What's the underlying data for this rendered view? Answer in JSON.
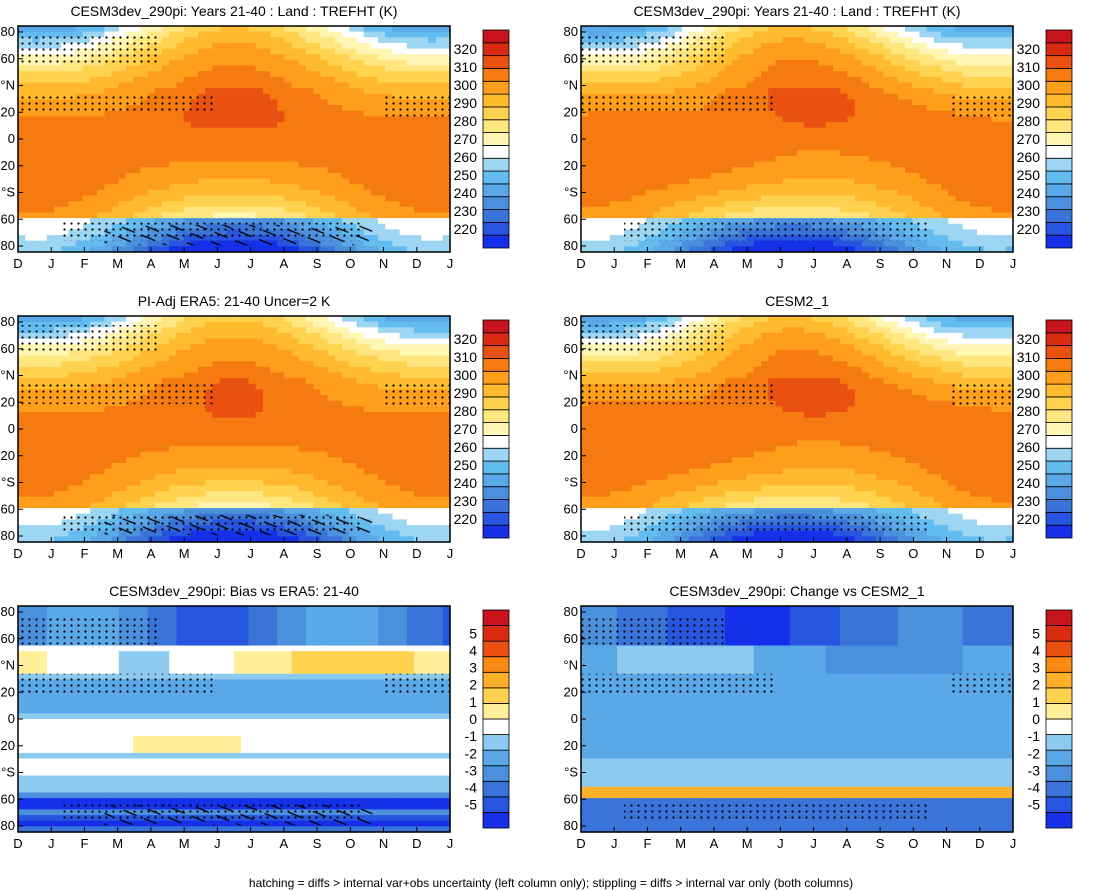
{
  "footer": "hatching = diffs > internal var+obs uncertainty (left column only); stippling = diffs > internal var only (both columns)",
  "months": [
    "D",
    "J",
    "F",
    "M",
    "A",
    "M",
    "J",
    "J",
    "A",
    "S",
    "O",
    "N",
    "D",
    "J"
  ],
  "lat_labels": [
    "80",
    "60",
    "°N",
    "20",
    "0",
    "20",
    "°S",
    "60",
    "80"
  ],
  "colors": {
    "temp": [
      "#1530e8",
      "#2855e0",
      "#3a74d9",
      "#4b90dd",
      "#5aa8e8",
      "#63bcf0",
      "#9dd6f2",
      "#ffffff",
      "#fff6b3",
      "#ffe680",
      "#ffd24f",
      "#ffba2e",
      "#ff9e1a",
      "#f57a10",
      "#ea5010",
      "#d92a12",
      "#c8141c"
    ],
    "diff": [
      "#1530e8",
      "#2855e0",
      "#3a74d9",
      "#4b90dd",
      "#5aa8e8",
      "#8ccaf0",
      "#ffffff",
      "#ffef9a",
      "#ffd24f",
      "#ffb02a",
      "#fb8a14",
      "#ea5010",
      "#d92a12",
      "#c8141c"
    ]
  },
  "chart_data": [
    {
      "type": "heatmap",
      "title": "CESM3dev_290pi: Years 21-40 : Land : TREFHT (K)",
      "x": [
        "D",
        "J",
        "F",
        "M",
        "A",
        "M",
        "J",
        "J",
        "A",
        "S",
        "O",
        "N",
        "D",
        "J"
      ],
      "y": [
        "80",
        "60",
        "°N",
        "20",
        "0",
        "20",
        "°S",
        "60",
        "80"
      ],
      "colorbar": [
        "320",
        "310",
        "300",
        "290",
        "280",
        "270",
        "260",
        "250",
        "240",
        "230",
        "220"
      ],
      "field": "temp",
      "variant": 0
    },
    {
      "type": "heatmap",
      "title": "CESM3dev_290pi: Years 21-40 : Land : TREFHT (K)",
      "x": [
        "D",
        "J",
        "F",
        "M",
        "A",
        "M",
        "J",
        "J",
        "A",
        "S",
        "O",
        "N",
        "D",
        "J"
      ],
      "y": [
        "80",
        "60",
        "°N",
        "20",
        "0",
        "20",
        "°S",
        "60",
        "80"
      ],
      "colorbar": [
        "320",
        "310",
        "300",
        "290",
        "280",
        "270",
        "260",
        "250",
        "240",
        "230",
        "220"
      ],
      "field": "temp",
      "variant": 1
    },
    {
      "type": "heatmap",
      "title": "PI-Adj ERA5: 21-40 Uncer=2 K",
      "x": [
        "D",
        "J",
        "F",
        "M",
        "A",
        "M",
        "J",
        "J",
        "A",
        "S",
        "O",
        "N",
        "D",
        "J"
      ],
      "y": [
        "80",
        "60",
        "°N",
        "20",
        "0",
        "20",
        "°S",
        "60",
        "80"
      ],
      "colorbar": [
        "320",
        "310",
        "300",
        "290",
        "280",
        "270",
        "260",
        "250",
        "240",
        "230",
        "220"
      ],
      "field": "temp",
      "variant": 2
    },
    {
      "type": "heatmap",
      "title": "CESM2_1",
      "x": [
        "D",
        "J",
        "F",
        "M",
        "A",
        "M",
        "J",
        "J",
        "A",
        "S",
        "O",
        "N",
        "D",
        "J"
      ],
      "y": [
        "80",
        "60",
        "°N",
        "20",
        "0",
        "20",
        "°S",
        "60",
        "80"
      ],
      "colorbar": [
        "320",
        "310",
        "300",
        "290",
        "280",
        "270",
        "260",
        "250",
        "240",
        "230",
        "220"
      ],
      "field": "temp",
      "variant": 3
    },
    {
      "type": "heatmap",
      "title": "CESM3dev_290pi: Bias vs ERA5: 21-40",
      "x": [
        "D",
        "J",
        "F",
        "M",
        "A",
        "M",
        "J",
        "J",
        "A",
        "S",
        "O",
        "N",
        "D",
        "J"
      ],
      "y": [
        "80",
        "60",
        "°N",
        "20",
        "0",
        "20",
        "°S",
        "60",
        "80"
      ],
      "colorbar": [
        "5",
        "4",
        "3",
        "2",
        "1",
        "0",
        "-1",
        "-2",
        "-3",
        "-4",
        "-5"
      ],
      "field": "bias",
      "variant": 4
    },
    {
      "type": "heatmap",
      "title": "CESM3dev_290pi: Change vs CESM2_1",
      "x": [
        "D",
        "J",
        "F",
        "M",
        "A",
        "M",
        "J",
        "J",
        "A",
        "S",
        "O",
        "N",
        "D",
        "J"
      ],
      "y": [
        "80",
        "60",
        "°N",
        "20",
        "0",
        "20",
        "°S",
        "60",
        "80"
      ],
      "colorbar": [
        "5",
        "4",
        "3",
        "2",
        "1",
        "0",
        "-1",
        "-2",
        "-3",
        "-4",
        "-5"
      ],
      "field": "change",
      "variant": 5
    }
  ]
}
